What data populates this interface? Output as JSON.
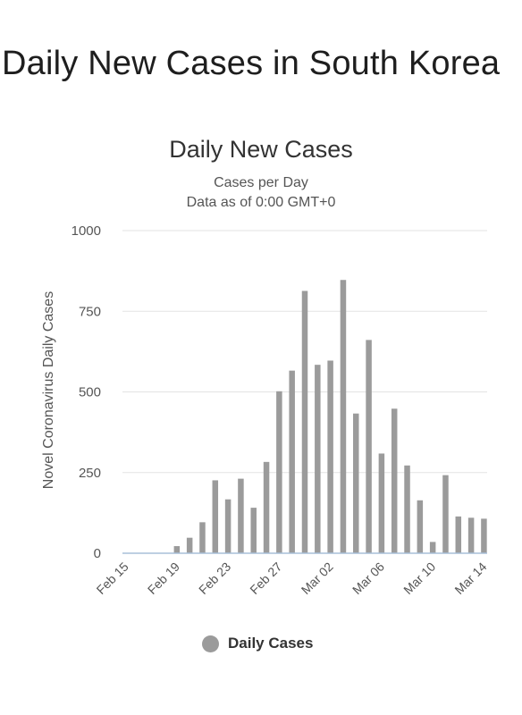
{
  "page": {
    "heading": "Daily New Cases in South Korea"
  },
  "chart_data": {
    "type": "bar",
    "title": "Daily New Cases",
    "subtitle_lines": [
      "Cases per Day",
      "Data as of 0:00 GMT+0"
    ],
    "ylabel": "Novel Coronavirus Daily Cases",
    "xlabel": "",
    "ylim": [
      0,
      1000
    ],
    "yticks": [
      0,
      250,
      500,
      750,
      1000
    ],
    "grid": true,
    "legend_position": "bottom",
    "bar_color": "#9b9b9b",
    "categories": [
      "Feb 15",
      "Feb 16",
      "Feb 17",
      "Feb 18",
      "Feb 19",
      "Feb 20",
      "Feb 21",
      "Feb 22",
      "Feb 23",
      "Feb 24",
      "Feb 25",
      "Feb 26",
      "Feb 27",
      "Feb 28",
      "Feb 29",
      "Mar 01",
      "Mar 02",
      "Mar 03",
      "Mar 04",
      "Mar 05",
      "Mar 06",
      "Mar 07",
      "Mar 08",
      "Mar 09",
      "Mar 10",
      "Mar 11",
      "Mar 12",
      "Mar 13",
      "Mar 14"
    ],
    "tick_labels": [
      "Feb 15",
      "Feb 19",
      "Feb 23",
      "Feb 27",
      "Mar 02",
      "Mar 06",
      "Mar 10",
      "Mar 14"
    ],
    "series": [
      {
        "name": "Daily Cases",
        "values": [
          0,
          0,
          0,
          0,
          22,
          48,
          96,
          226,
          167,
          231,
          141,
          283,
          502,
          566,
          813,
          584,
          597,
          847,
          433,
          661,
          309,
          448,
          272,
          164,
          35,
          242,
          114,
          110,
          107
        ]
      }
    ]
  }
}
